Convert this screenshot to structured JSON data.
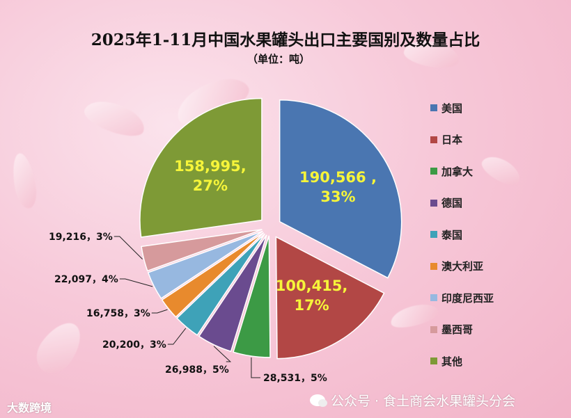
{
  "chart_data": {
    "type": "pie",
    "title": "2025年1-11月中国水果罐头出口主要国别及数量占比",
    "subtitle": "（单位：吨）",
    "legend_position": "right",
    "slices": [
      {
        "name": "美国",
        "value": 190566,
        "label": "190,566 , 33%",
        "color": "#4a76b1"
      },
      {
        "name": "日本",
        "value": 100415,
        "label": "100,415, 17%",
        "color": "#b24745"
      },
      {
        "name": "加拿大",
        "value": 28531,
        "label": "28,531，5%",
        "color": "#3c9a45"
      },
      {
        "name": "德国",
        "value": 26988,
        "label": "26,988，5%",
        "color": "#6a4b8f"
      },
      {
        "name": "泰国",
        "value": 20200,
        "label": "20,200，3%",
        "color": "#3ea2b8"
      },
      {
        "name": "澳大利亚",
        "value": 16758,
        "label": "16,758，3%",
        "color": "#e88a2d"
      },
      {
        "name": "印度尼西亚",
        "value": 22097,
        "label": "22,097，4%",
        "color": "#97b8e0"
      },
      {
        "name": "墨西哥",
        "value": 19216,
        "label": "19,216，3%",
        "color": "#d69a9c"
      },
      {
        "name": "其他",
        "value": 158995,
        "label": "158,995, 27%",
        "color": "#7e9a36"
      }
    ]
  },
  "watermark": "公众号 · 食土商会水果罐头分会",
  "logo": "大数跨境"
}
